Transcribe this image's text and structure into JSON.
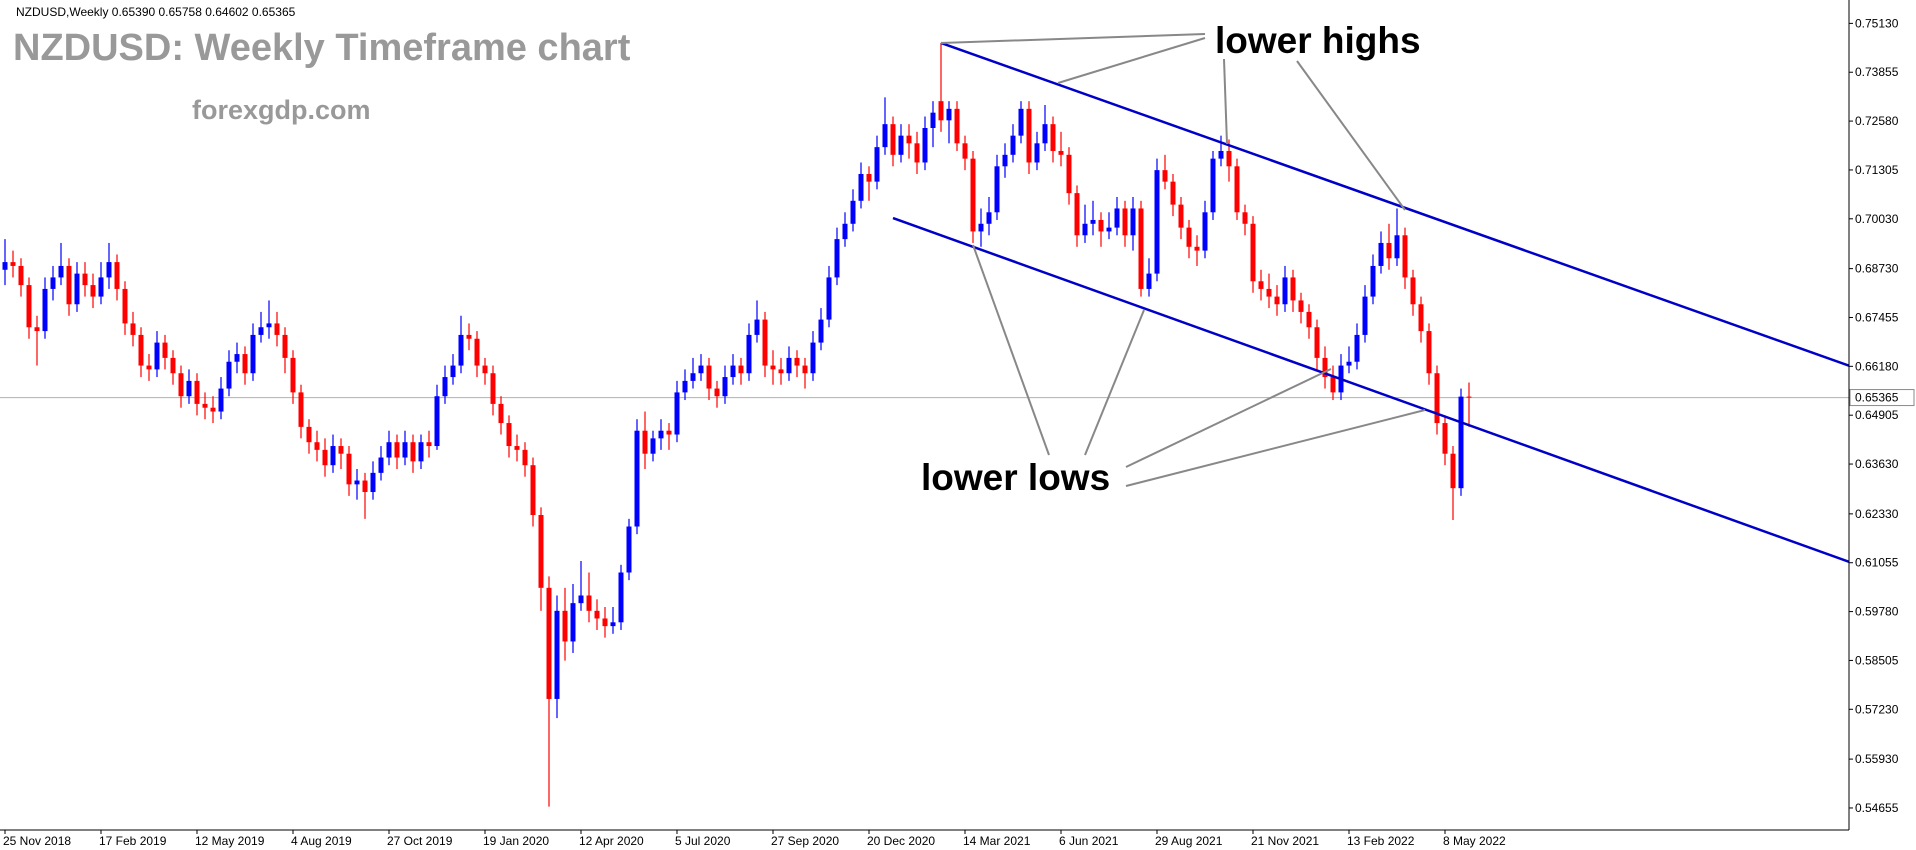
{
  "chart_data": {
    "type": "candlestick",
    "header": "NZDUSD,Weekly  0.65390 0.65758 0.64602 0.65365",
    "title": "NZDUSD: Weekly Timeframe chart",
    "subtitle": "forexgdp.com",
    "annotations": [
      "lower highs",
      "lower lows"
    ],
    "colors": {
      "up": "#0000ff",
      "down": "#ff0000",
      "trendline": "#0000c8"
    },
    "grid": false,
    "ylim": [
      0.5408,
      0.7574
    ],
    "yticks": [
      {
        "value": 0.7513,
        "label": "0.75130"
      },
      {
        "value": 0.73855,
        "label": "0.73855"
      },
      {
        "value": 0.7258,
        "label": "0.72580"
      },
      {
        "value": 0.71305,
        "label": "0.71305"
      },
      {
        "value": 0.7003,
        "label": "0.70030"
      },
      {
        "value": 0.6873,
        "label": "0.68730"
      },
      {
        "value": 0.67455,
        "label": "0.67455"
      },
      {
        "value": 0.6618,
        "label": "0.66180"
      },
      {
        "value": 0.64905,
        "label": "0.64905"
      },
      {
        "value": 0.6363,
        "label": "0.63630"
      },
      {
        "value": 0.6233,
        "label": "0.62330"
      },
      {
        "value": 0.61055,
        "label": "0.61055"
      },
      {
        "value": 0.5978,
        "label": "0.59780"
      },
      {
        "value": 0.58505,
        "label": "0.58505"
      },
      {
        "value": 0.5723,
        "label": "0.57230"
      },
      {
        "value": 0.5593,
        "label": "0.55930"
      },
      {
        "value": 0.54655,
        "label": "0.54655"
      }
    ],
    "current_price": {
      "value": 0.65365,
      "label": "0.65365"
    },
    "categories": [
      "25 Nov 2018",
      null,
      null,
      null,
      null,
      null,
      null,
      null,
      null,
      null,
      null,
      null,
      "17 Feb 2019",
      null,
      null,
      null,
      null,
      null,
      null,
      null,
      null,
      null,
      null,
      null,
      "12 May 2019",
      null,
      null,
      null,
      null,
      null,
      null,
      null,
      null,
      null,
      null,
      null,
      "4 Aug 2019",
      null,
      null,
      null,
      null,
      null,
      null,
      null,
      null,
      null,
      null,
      null,
      "27 Oct 2019",
      null,
      null,
      null,
      null,
      null,
      null,
      null,
      null,
      null,
      null,
      null,
      "19 Jan 2020",
      null,
      null,
      null,
      null,
      null,
      null,
      null,
      null,
      null,
      null,
      null,
      "12 Apr 2020",
      null,
      null,
      null,
      null,
      null,
      null,
      null,
      null,
      null,
      null,
      null,
      "5 Jul 2020",
      null,
      null,
      null,
      null,
      null,
      null,
      null,
      null,
      null,
      null,
      null,
      "27 Sep 2020",
      null,
      null,
      null,
      null,
      null,
      null,
      null,
      null,
      null,
      null,
      null,
      "20 Dec 2020",
      null,
      null,
      null,
      null,
      null,
      null,
      null,
      null,
      null,
      null,
      null,
      "14 Mar 2021",
      null,
      null,
      null,
      null,
      null,
      null,
      null,
      null,
      null,
      null,
      null,
      "6 Jun 2021",
      null,
      null,
      null,
      null,
      null,
      null,
      null,
      null,
      null,
      null,
      null,
      "29 Aug 2021",
      null,
      null,
      null,
      null,
      null,
      null,
      null,
      null,
      null,
      null,
      null,
      "21 Nov 2021",
      null,
      null,
      null,
      null,
      null,
      null,
      null,
      null,
      null,
      null,
      null,
      "13 Feb 2022",
      null,
      null,
      null,
      null,
      null,
      null,
      null,
      null,
      null,
      null,
      null,
      "8 May 2022",
      null,
      null,
      null
    ],
    "ohlc": [
      [
        0.687,
        0.695,
        0.683,
        0.689
      ],
      [
        0.689,
        0.692,
        0.685,
        0.688
      ],
      [
        0.688,
        0.69,
        0.68,
        0.683
      ],
      [
        0.683,
        0.685,
        0.669,
        0.672
      ],
      [
        0.672,
        0.675,
        0.662,
        0.671
      ],
      [
        0.671,
        0.685,
        0.669,
        0.682
      ],
      [
        0.682,
        0.688,
        0.679,
        0.685
      ],
      [
        0.685,
        0.694,
        0.683,
        0.688
      ],
      [
        0.688,
        0.69,
        0.675,
        0.678
      ],
      [
        0.678,
        0.689,
        0.676,
        0.686
      ],
      [
        0.686,
        0.689,
        0.68,
        0.683
      ],
      [
        0.683,
        0.686,
        0.677,
        0.68
      ],
      [
        0.68,
        0.689,
        0.678,
        0.685
      ],
      [
        0.685,
        0.694,
        0.682,
        0.689
      ],
      [
        0.689,
        0.691,
        0.679,
        0.682
      ],
      [
        0.682,
        0.684,
        0.67,
        0.673
      ],
      [
        0.673,
        0.676,
        0.667,
        0.67
      ],
      [
        0.67,
        0.672,
        0.659,
        0.662
      ],
      [
        0.662,
        0.665,
        0.658,
        0.661
      ],
      [
        0.661,
        0.671,
        0.659,
        0.668
      ],
      [
        0.668,
        0.67,
        0.661,
        0.664
      ],
      [
        0.664,
        0.666,
        0.657,
        0.66
      ],
      [
        0.66,
        0.662,
        0.651,
        0.654
      ],
      [
        0.654,
        0.661,
        0.652,
        0.658
      ],
      [
        0.658,
        0.66,
        0.649,
        0.652
      ],
      [
        0.652,
        0.655,
        0.648,
        0.651
      ],
      [
        0.651,
        0.654,
        0.647,
        0.65
      ],
      [
        0.65,
        0.659,
        0.648,
        0.656
      ],
      [
        0.656,
        0.666,
        0.654,
        0.663
      ],
      [
        0.663,
        0.668,
        0.66,
        0.665
      ],
      [
        0.665,
        0.667,
        0.657,
        0.66
      ],
      [
        0.66,
        0.673,
        0.658,
        0.67
      ],
      [
        0.67,
        0.676,
        0.668,
        0.672
      ],
      [
        0.672,
        0.679,
        0.669,
        0.673
      ],
      [
        0.673,
        0.676,
        0.667,
        0.67
      ],
      [
        0.67,
        0.672,
        0.66,
        0.664
      ],
      [
        0.664,
        0.666,
        0.652,
        0.655
      ],
      [
        0.655,
        0.657,
        0.643,
        0.646
      ],
      [
        0.646,
        0.648,
        0.639,
        0.642
      ],
      [
        0.642,
        0.645,
        0.637,
        0.64
      ],
      [
        0.64,
        0.643,
        0.633,
        0.636
      ],
      [
        0.636,
        0.644,
        0.634,
        0.641
      ],
      [
        0.641,
        0.643,
        0.635,
        0.639
      ],
      [
        0.639,
        0.641,
        0.628,
        0.631
      ],
      [
        0.631,
        0.635,
        0.627,
        0.632
      ],
      [
        0.632,
        0.634,
        0.622,
        0.629
      ],
      [
        0.629,
        0.637,
        0.627,
        0.634
      ],
      [
        0.634,
        0.641,
        0.632,
        0.638
      ],
      [
        0.638,
        0.645,
        0.636,
        0.642
      ],
      [
        0.642,
        0.644,
        0.635,
        0.638
      ],
      [
        0.638,
        0.645,
        0.636,
        0.642
      ],
      [
        0.642,
        0.644,
        0.634,
        0.637
      ],
      [
        0.637,
        0.644,
        0.635,
        0.642
      ],
      [
        0.642,
        0.645,
        0.638,
        0.641
      ],
      [
        0.641,
        0.657,
        0.64,
        0.654
      ],
      [
        0.654,
        0.662,
        0.652,
        0.659
      ],
      [
        0.659,
        0.665,
        0.657,
        0.662
      ],
      [
        0.662,
        0.675,
        0.66,
        0.67
      ],
      [
        0.67,
        0.673,
        0.666,
        0.669
      ],
      [
        0.669,
        0.671,
        0.659,
        0.662
      ],
      [
        0.662,
        0.664,
        0.657,
        0.66
      ],
      [
        0.66,
        0.662,
        0.649,
        0.652
      ],
      [
        0.652,
        0.654,
        0.644,
        0.647
      ],
      [
        0.647,
        0.649,
        0.638,
        0.641
      ],
      [
        0.641,
        0.644,
        0.637,
        0.64
      ],
      [
        0.64,
        0.642,
        0.633,
        0.636
      ],
      [
        0.636,
        0.638,
        0.62,
        0.623
      ],
      [
        0.623,
        0.625,
        0.598,
        0.604
      ],
      [
        0.604,
        0.607,
        0.5469,
        0.575
      ],
      [
        0.575,
        0.602,
        0.57,
        0.598
      ],
      [
        0.598,
        0.604,
        0.585,
        0.59
      ],
      [
        0.59,
        0.605,
        0.587,
        0.6
      ],
      [
        0.6,
        0.611,
        0.598,
        0.602
      ],
      [
        0.602,
        0.608,
        0.595,
        0.598
      ],
      [
        0.598,
        0.601,
        0.593,
        0.596
      ],
      [
        0.596,
        0.599,
        0.591,
        0.594
      ],
      [
        0.594,
        0.599,
        0.592,
        0.595
      ],
      [
        0.595,
        0.61,
        0.593,
        0.608
      ],
      [
        0.608,
        0.622,
        0.606,
        0.62
      ],
      [
        0.62,
        0.648,
        0.618,
        0.645
      ],
      [
        0.645,
        0.65,
        0.635,
        0.639
      ],
      [
        0.639,
        0.645,
        0.637,
        0.643
      ],
      [
        0.643,
        0.648,
        0.64,
        0.645
      ],
      [
        0.645,
        0.647,
        0.64,
        0.644
      ],
      [
        0.644,
        0.658,
        0.642,
        0.655
      ],
      [
        0.655,
        0.661,
        0.653,
        0.658
      ],
      [
        0.658,
        0.664,
        0.656,
        0.66
      ],
      [
        0.66,
        0.665,
        0.658,
        0.662
      ],
      [
        0.662,
        0.664,
        0.653,
        0.656
      ],
      [
        0.656,
        0.658,
        0.651,
        0.654
      ],
      [
        0.654,
        0.662,
        0.652,
        0.659
      ],
      [
        0.659,
        0.665,
        0.657,
        0.662
      ],
      [
        0.662,
        0.664,
        0.657,
        0.66
      ],
      [
        0.66,
        0.673,
        0.658,
        0.67
      ],
      [
        0.67,
        0.679,
        0.668,
        0.674
      ],
      [
        0.674,
        0.676,
        0.659,
        0.662
      ],
      [
        0.662,
        0.666,
        0.657,
        0.661
      ],
      [
        0.661,
        0.664,
        0.657,
        0.66
      ],
      [
        0.66,
        0.667,
        0.658,
        0.664
      ],
      [
        0.664,
        0.666,
        0.659,
        0.662
      ],
      [
        0.662,
        0.664,
        0.656,
        0.66
      ],
      [
        0.66,
        0.671,
        0.658,
        0.668
      ],
      [
        0.668,
        0.677,
        0.666,
        0.674
      ],
      [
        0.674,
        0.688,
        0.672,
        0.685
      ],
      [
        0.685,
        0.698,
        0.683,
        0.695
      ],
      [
        0.695,
        0.702,
        0.693,
        0.699
      ],
      [
        0.699,
        0.708,
        0.697,
        0.705
      ],
      [
        0.705,
        0.715,
        0.703,
        0.712
      ],
      [
        0.712,
        0.714,
        0.705,
        0.71
      ],
      [
        0.71,
        0.722,
        0.708,
        0.719
      ],
      [
        0.719,
        0.732,
        0.717,
        0.725
      ],
      [
        0.725,
        0.727,
        0.714,
        0.717
      ],
      [
        0.717,
        0.725,
        0.715,
        0.722
      ],
      [
        0.722,
        0.725,
        0.716,
        0.72
      ],
      [
        0.72,
        0.723,
        0.712,
        0.715
      ],
      [
        0.715,
        0.727,
        0.713,
        0.724
      ],
      [
        0.724,
        0.731,
        0.719,
        0.728
      ],
      [
        0.731,
        0.7462,
        0.723,
        0.726
      ],
      [
        0.726,
        0.731,
        0.72,
        0.729
      ],
      [
        0.729,
        0.731,
        0.718,
        0.72
      ],
      [
        0.72,
        0.722,
        0.713,
        0.716
      ],
      [
        0.716,
        0.718,
        0.694,
        0.697
      ],
      [
        0.697,
        0.703,
        0.693,
        0.699
      ],
      [
        0.699,
        0.706,
        0.696,
        0.702
      ],
      [
        0.702,
        0.717,
        0.7,
        0.714
      ],
      [
        0.714,
        0.72,
        0.711,
        0.717
      ],
      [
        0.717,
        0.725,
        0.715,
        0.722
      ],
      [
        0.722,
        0.731,
        0.72,
        0.729
      ],
      [
        0.729,
        0.731,
        0.712,
        0.715
      ],
      [
        0.715,
        0.723,
        0.713,
        0.72
      ],
      [
        0.72,
        0.73,
        0.718,
        0.725
      ],
      [
        0.725,
        0.727,
        0.715,
        0.718
      ],
      [
        0.718,
        0.723,
        0.714,
        0.717
      ],
      [
        0.717,
        0.719,
        0.704,
        0.707
      ],
      [
        0.707,
        0.709,
        0.693,
        0.696
      ],
      [
        0.696,
        0.704,
        0.694,
        0.699
      ],
      [
        0.699,
        0.705,
        0.696,
        0.7
      ],
      [
        0.7,
        0.702,
        0.693,
        0.697
      ],
      [
        0.697,
        0.702,
        0.695,
        0.698
      ],
      [
        0.698,
        0.706,
        0.696,
        0.703
      ],
      [
        0.703,
        0.705,
        0.693,
        0.696
      ],
      [
        0.696,
        0.706,
        0.692,
        0.703
      ],
      [
        0.703,
        0.705,
        0.68,
        0.682
      ],
      [
        0.682,
        0.69,
        0.68,
        0.686
      ],
      [
        0.686,
        0.716,
        0.684,
        0.713
      ],
      [
        0.713,
        0.717,
        0.708,
        0.71
      ],
      [
        0.71,
        0.712,
        0.701,
        0.704
      ],
      [
        0.704,
        0.706,
        0.695,
        0.698
      ],
      [
        0.698,
        0.7,
        0.69,
        0.693
      ],
      [
        0.693,
        0.696,
        0.688,
        0.692
      ],
      [
        0.692,
        0.705,
        0.69,
        0.702
      ],
      [
        0.702,
        0.718,
        0.7,
        0.716
      ],
      [
        0.716,
        0.722,
        0.714,
        0.718
      ],
      [
        0.718,
        0.721,
        0.71,
        0.714
      ],
      [
        0.714,
        0.716,
        0.7,
        0.702
      ],
      [
        0.702,
        0.704,
        0.696,
        0.699
      ],
      [
        0.699,
        0.701,
        0.681,
        0.684
      ],
      [
        0.684,
        0.687,
        0.679,
        0.682
      ],
      [
        0.682,
        0.686,
        0.677,
        0.68
      ],
      [
        0.68,
        0.683,
        0.675,
        0.678
      ],
      [
        0.678,
        0.688,
        0.676,
        0.685
      ],
      [
        0.685,
        0.687,
        0.676,
        0.679
      ],
      [
        0.679,
        0.681,
        0.673,
        0.676
      ],
      [
        0.676,
        0.678,
        0.669,
        0.672
      ],
      [
        0.672,
        0.674,
        0.661,
        0.664
      ],
      [
        0.664,
        0.667,
        0.656,
        0.659
      ],
      [
        0.659,
        0.662,
        0.653,
        0.655
      ],
      [
        0.655,
        0.665,
        0.653,
        0.662
      ],
      [
        0.662,
        0.667,
        0.66,
        0.663
      ],
      [
        0.663,
        0.673,
        0.661,
        0.67
      ],
      [
        0.67,
        0.683,
        0.668,
        0.68
      ],
      [
        0.68,
        0.691,
        0.678,
        0.688
      ],
      [
        0.688,
        0.697,
        0.686,
        0.694
      ],
      [
        0.694,
        0.699,
        0.687,
        0.69
      ],
      [
        0.69,
        0.703,
        0.688,
        0.696
      ],
      [
        0.696,
        0.698,
        0.682,
        0.685
      ],
      [
        0.685,
        0.687,
        0.675,
        0.678
      ],
      [
        0.678,
        0.68,
        0.668,
        0.671
      ],
      [
        0.671,
        0.673,
        0.657,
        0.66
      ],
      [
        0.66,
        0.662,
        0.644,
        0.647
      ],
      [
        0.647,
        0.649,
        0.636,
        0.639
      ],
      [
        0.639,
        0.641,
        0.6217,
        0.63
      ],
      [
        0.63,
        0.656,
        0.628,
        0.6539
      ],
      [
        0.6539,
        0.65758,
        0.64602,
        0.65365
      ]
    ],
    "trendlines": [
      {
        "x": [
          117,
          231
        ],
        "y": [
          0.7462,
          0.6616
        ]
      },
      {
        "x": [
          111,
          231
        ],
        "y": [
          0.7005,
          0.6104
        ]
      }
    ]
  }
}
